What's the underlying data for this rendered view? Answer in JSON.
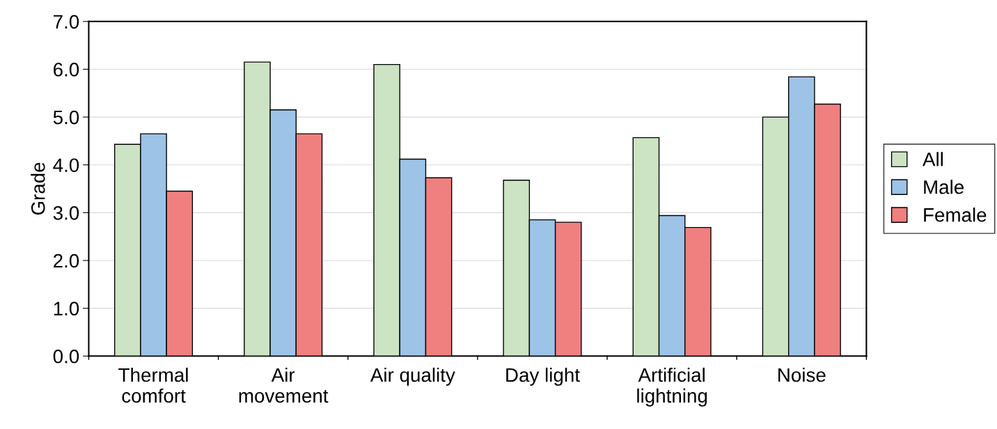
{
  "chart_data": {
    "type": "bar",
    "ylabel": "Grade",
    "categories": [
      "Thermal\ncomfort",
      "Air\nmovement",
      "Air quality",
      "Day light",
      "Artificial\nlightning",
      "Noise"
    ],
    "series": [
      {
        "name": "All",
        "color": "#cce3c4",
        "values": [
          4.43,
          6.15,
          6.1,
          3.68,
          4.57,
          5.0
        ]
      },
      {
        "name": "Male",
        "color": "#9dc3e6",
        "values": [
          4.65,
          5.15,
          4.12,
          2.85,
          2.94,
          5.84
        ]
      },
      {
        "name": "Female",
        "color": "#f08080",
        "values": [
          3.45,
          4.65,
          3.73,
          2.8,
          2.69,
          5.27
        ]
      }
    ],
    "ylim": [
      0,
      7
    ],
    "yticks": [
      {
        "value": 0,
        "label": "0.0"
      },
      {
        "value": 1,
        "label": "1.0"
      },
      {
        "value": 2,
        "label": "2.0"
      },
      {
        "value": 3,
        "label": "3.0"
      },
      {
        "value": 4,
        "label": "4.0"
      },
      {
        "value": 5,
        "label": "5.0"
      },
      {
        "value": 6,
        "label": "6.0"
      },
      {
        "value": 7,
        "label": "7.0"
      }
    ],
    "grid": "y",
    "legend": "right"
  }
}
